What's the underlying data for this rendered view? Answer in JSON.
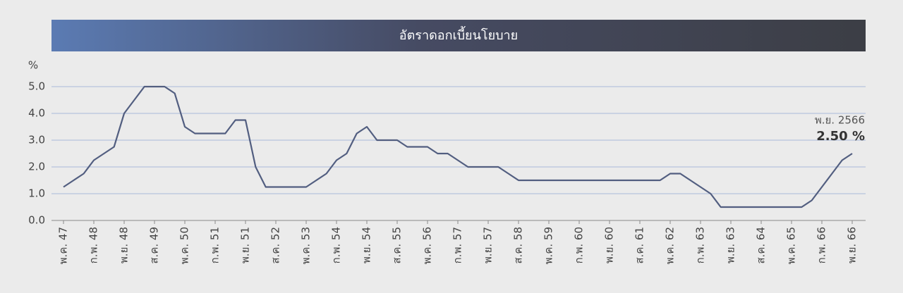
{
  "chart_data": {
    "type": "line",
    "title": "อัตราดอกเบี้ยนโยบาย",
    "ylabel": "%",
    "categories": [
      "พ.ค. 47",
      null,
      null,
      "ก.พ. 48",
      null,
      null,
      "พ.ย. 48",
      null,
      null,
      "ส.ค. 49",
      null,
      null,
      "พ.ค. 50",
      null,
      null,
      "ก.พ. 51",
      null,
      null,
      "พ.ย. 51",
      null,
      null,
      "ส.ค. 52",
      null,
      null,
      "พ.ค. 53",
      null,
      null,
      "ก.พ. 54",
      null,
      null,
      "พ.ย. 54",
      null,
      null,
      "ส.ค. 55",
      null,
      null,
      "พ.ค. 56",
      null,
      null,
      "ก.พ. 57",
      null,
      null,
      "พ.ย. 57",
      null,
      null,
      "ส.ค. 58",
      null,
      null,
      "พ.ค. 59",
      null,
      null,
      "ก.พ. 60",
      null,
      null,
      "พ.ย. 60",
      null,
      null,
      "ส.ค. 61",
      null,
      null,
      "พ.ค. 62",
      null,
      null,
      "ก.พ. 63",
      null,
      null,
      "พ.ย. 63",
      null,
      null,
      "ส.ค. 64",
      null,
      null,
      "พ.ค. 65",
      null,
      null,
      "ก.พ. 66",
      null,
      null,
      "พ.ย. 66"
    ],
    "series": [
      {
        "color": "#525e80",
        "values": [
          1.25,
          1.5,
          1.75,
          2.25,
          2.5,
          2.75,
          4.0,
          4.5,
          5.0,
          5.0,
          5.0,
          4.75,
          3.5,
          3.25,
          3.25,
          3.25,
          3.25,
          3.75,
          3.75,
          2.0,
          1.25,
          1.25,
          1.25,
          1.25,
          1.25,
          1.5,
          1.75,
          2.25,
          2.5,
          3.25,
          3.5,
          3.0,
          3.0,
          3.0,
          2.75,
          2.75,
          2.75,
          2.5,
          2.5,
          2.25,
          2.0,
          2.0,
          2.0,
          2.0,
          1.75,
          1.5,
          1.5,
          1.5,
          1.5,
          1.5,
          1.5,
          1.5,
          1.5,
          1.5,
          1.5,
          1.5,
          1.5,
          1.5,
          1.5,
          1.5,
          1.75,
          1.75,
          1.5,
          1.25,
          1.0,
          0.5,
          0.5,
          0.5,
          0.5,
          0.5,
          0.5,
          0.5,
          0.5,
          0.5,
          0.75,
          1.25,
          1.75,
          2.25,
          2.5
        ],
        "value_labels": [
          null,
          null,
          null,
          null,
          null,
          null,
          null,
          null,
          null,
          null,
          null,
          null,
          null,
          null,
          null,
          null,
          null,
          null,
          null,
          null,
          null,
          null,
          null,
          null,
          null,
          null,
          null,
          null,
          null,
          null,
          null,
          null,
          null,
          null,
          null,
          null,
          null,
          null,
          null,
          null,
          null,
          null,
          null,
          null,
          null,
          null,
          null,
          null,
          null,
          null,
          null,
          null,
          null,
          null,
          null,
          null,
          null,
          null,
          null,
          null,
          null,
          null,
          null,
          null,
          null,
          null,
          null,
          null,
          null,
          null,
          null,
          null,
          null,
          null,
          null,
          null,
          null,
          null,
          "2.50 %"
        ]
      }
    ],
    "annotation": "พ.ย. 2566",
    "ylim": [
      0,
      5
    ],
    "yticks": [
      {
        "value": 0,
        "label": "0.0"
      },
      {
        "value": 1,
        "label": "1.0"
      },
      {
        "value": 2,
        "label": "2.0"
      },
      {
        "value": 3,
        "label": "3.0"
      },
      {
        "value": 4,
        "label": "4.0"
      },
      {
        "value": 5,
        "label": "5.0"
      }
    ],
    "grid": true
  }
}
